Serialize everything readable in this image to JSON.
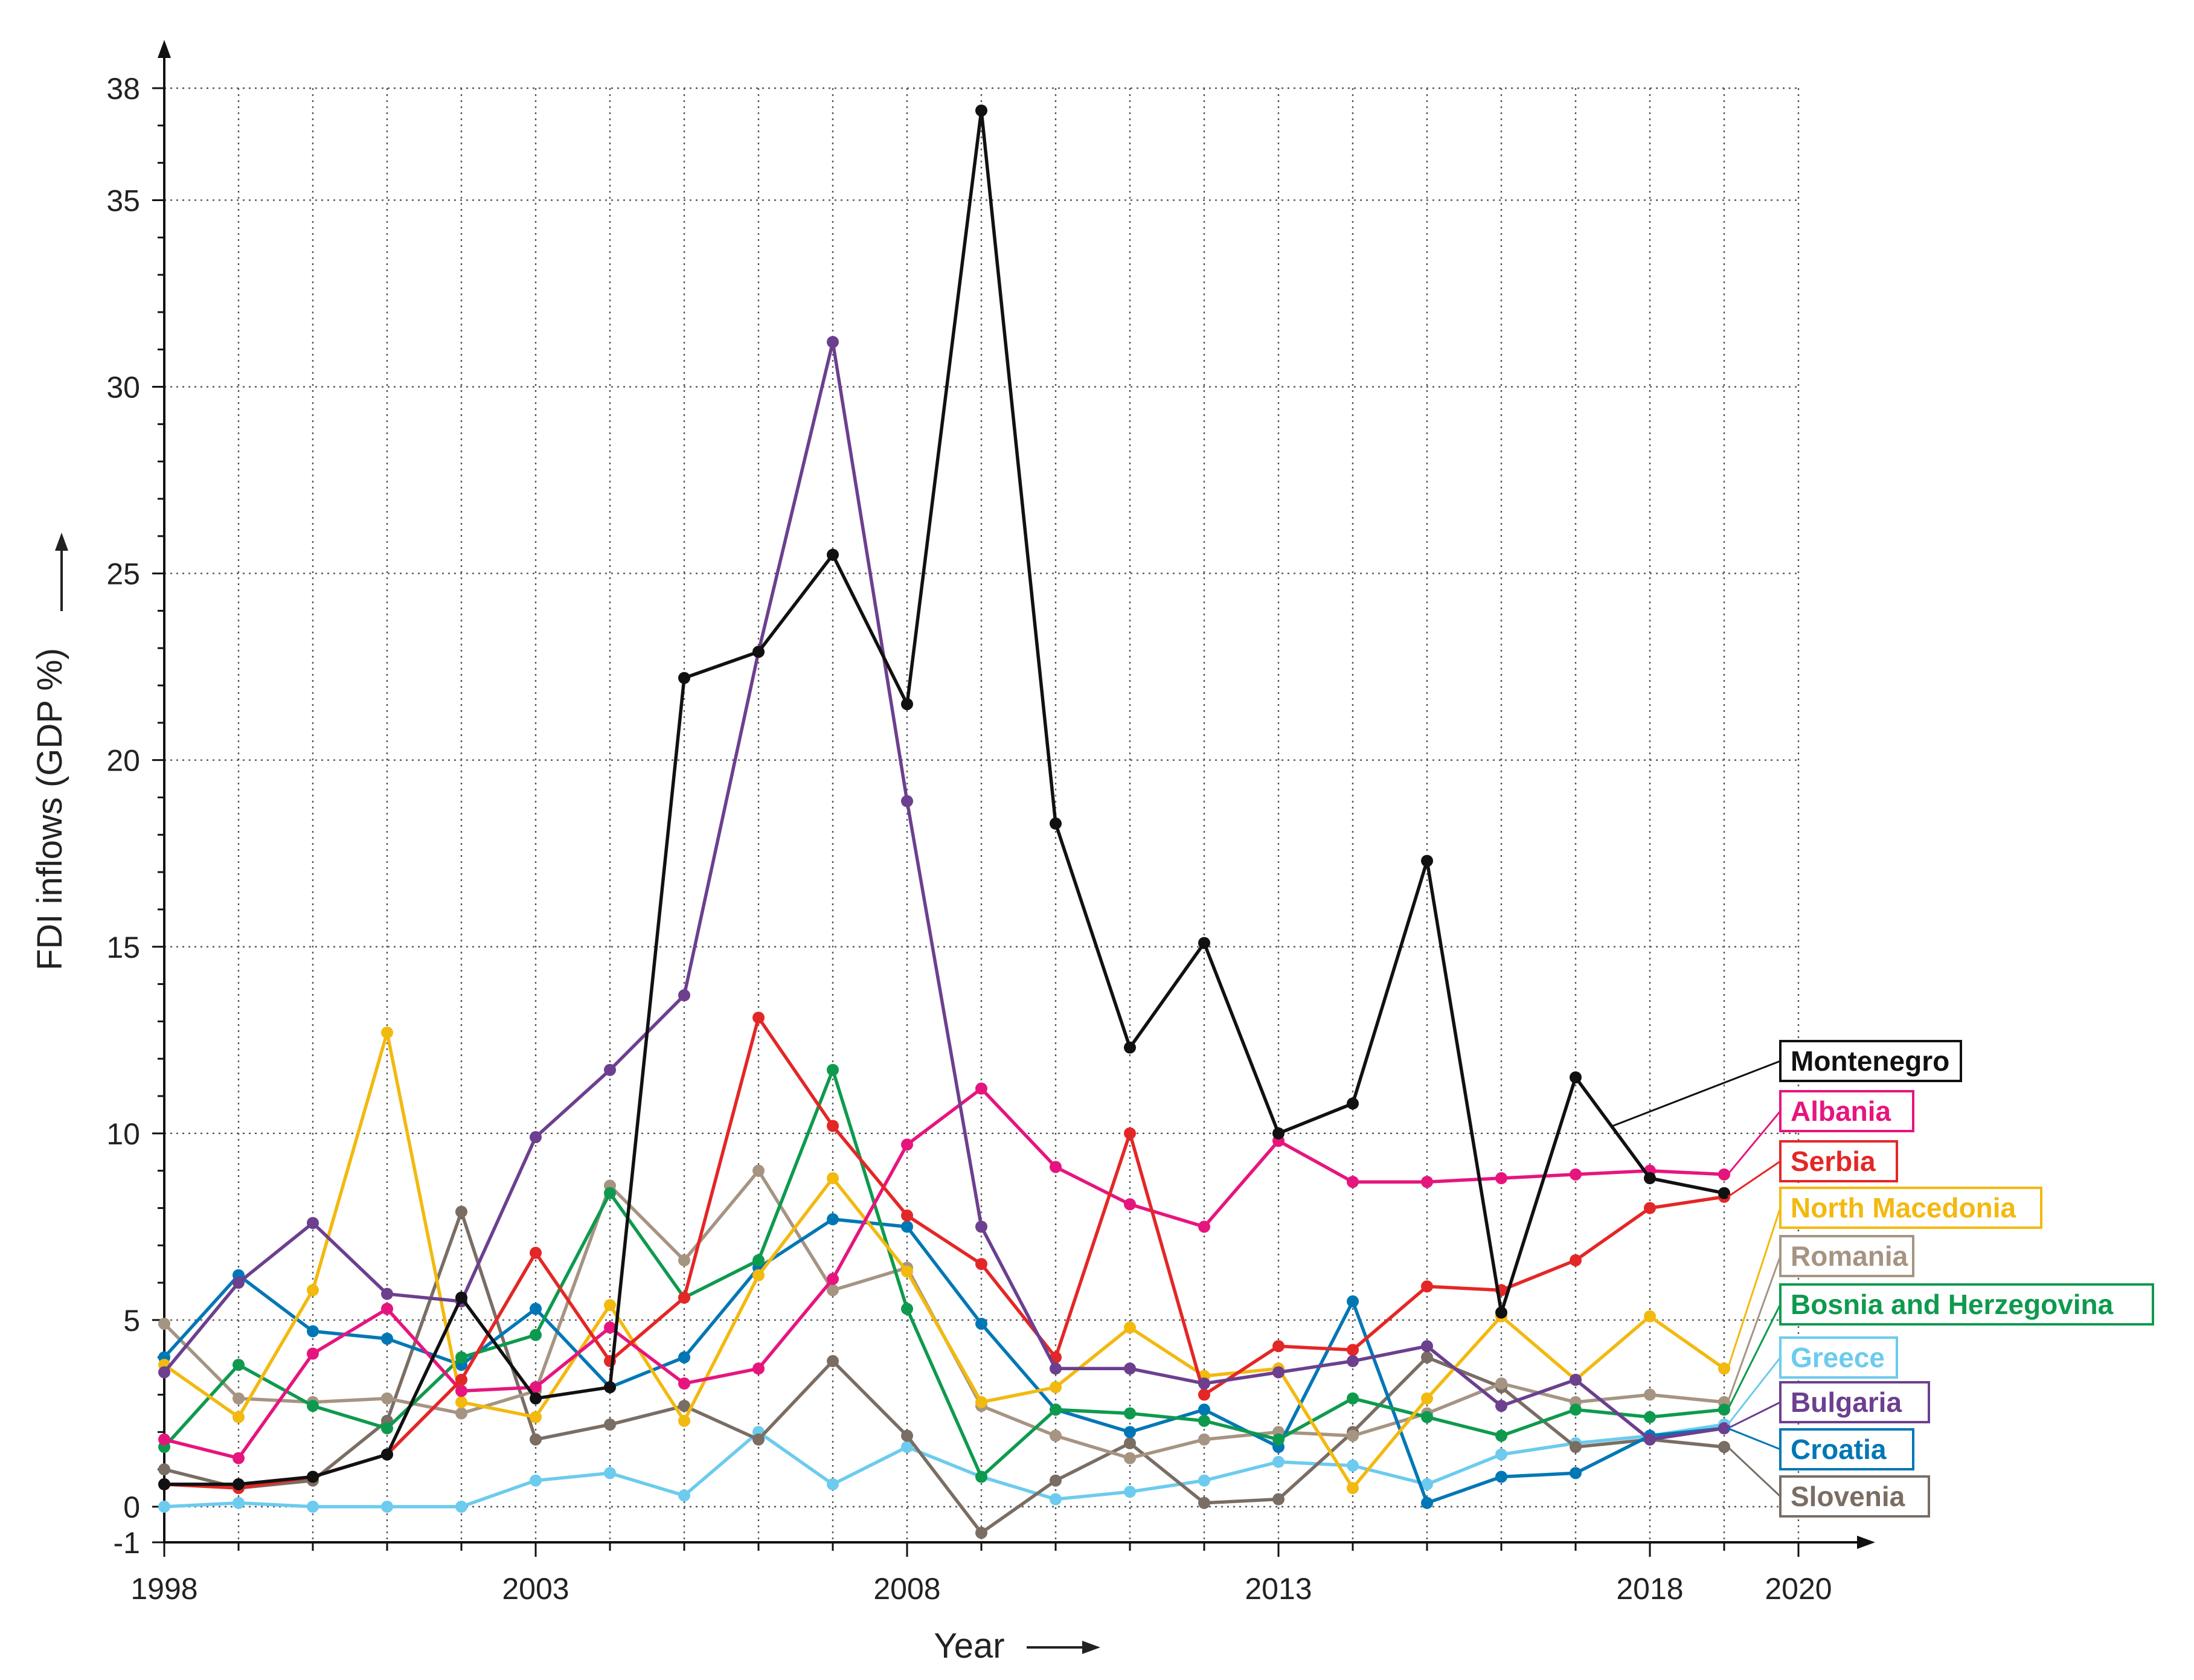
{
  "chart_data": {
    "type": "line",
    "title": "",
    "xlabel": "Year",
    "ylabel": "FDI inflows (GDP %)",
    "xlim": [
      1998,
      2020
    ],
    "ylim": [
      -1,
      38
    ],
    "x_ticks": [
      "1998",
      "2003",
      "2008",
      "2013",
      "2018",
      "2020"
    ],
    "y_ticks": [
      "-1",
      "0",
      "5",
      "10",
      "15",
      "20",
      "25",
      "30",
      "35",
      "38"
    ],
    "x": [
      1998,
      1999,
      2000,
      2001,
      2002,
      2003,
      2004,
      2005,
      2006,
      2007,
      2008,
      2009,
      2010,
      2011,
      2012,
      2013,
      2014,
      2015,
      2016,
      2017,
      2018,
      2019
    ],
    "grid": true,
    "legend_placement": "right",
    "series": [
      {
        "name": "Montenegro",
        "color": "#111111",
        "values": [
          0.6,
          0.6,
          0.8,
          1.4,
          5.6,
          2.9,
          3.2,
          22.2,
          22.9,
          25.5,
          21.5,
          37.4,
          18.3,
          12.3,
          15.1,
          10.0,
          10.8,
          17.3,
          5.2,
          11.5,
          8.8,
          8.4
        ]
      },
      {
        "name": "Albania",
        "color": "#e6157e",
        "values": [
          1.8,
          1.3,
          4.1,
          5.3,
          3.1,
          3.2,
          4.8,
          3.3,
          3.7,
          6.1,
          9.7,
          11.2,
          9.1,
          8.1,
          7.5,
          9.8,
          8.7,
          8.7,
          8.8,
          8.9,
          9.0,
          8.9
        ]
      },
      {
        "name": "Serbia",
        "color": "#e32726",
        "values": [
          0.6,
          0.5,
          0.8,
          1.4,
          3.4,
          6.8,
          3.9,
          5.6,
          13.1,
          10.2,
          7.8,
          6.5,
          4.0,
          10.0,
          3.0,
          4.3,
          4.2,
          5.9,
          5.8,
          6.6,
          8.0,
          8.3
        ]
      },
      {
        "name": "North Macedonia",
        "color": "#f2b90f",
        "values": [
          3.8,
          2.4,
          5.8,
          12.7,
          2.8,
          2.4,
          5.4,
          2.3,
          6.2,
          8.8,
          6.3,
          2.8,
          3.2,
          4.8,
          3.5,
          3.7,
          0.5,
          2.9,
          5.1,
          3.4,
          5.1,
          3.7
        ]
      },
      {
        "name": "Romania",
        "color": "#a69482",
        "values": [
          4.9,
          2.9,
          2.8,
          2.9,
          2.5,
          3.1,
          8.6,
          6.6,
          9.0,
          5.8,
          6.4,
          2.7,
          1.9,
          1.3,
          1.8,
          2.0,
          1.9,
          2.5,
          3.3,
          2.8,
          3.0,
          2.8
        ]
      },
      {
        "name": "Bosnia and Herzegovina",
        "color": "#0e9a4e",
        "values": [
          1.6,
          3.8,
          2.7,
          2.1,
          4.0,
          4.6,
          8.4,
          5.6,
          6.6,
          11.7,
          5.3,
          0.8,
          2.6,
          2.5,
          2.3,
          1.8,
          2.9,
          2.4,
          1.9,
          2.6,
          2.4,
          2.6
        ]
      },
      {
        "name": "Greece",
        "color": "#6ccbee",
        "values": [
          0.0,
          0.1,
          0.0,
          0.0,
          0.0,
          0.7,
          0.9,
          0.3,
          2.0,
          0.6,
          1.6,
          0.8,
          0.2,
          0.4,
          0.7,
          1.2,
          1.1,
          0.6,
          1.4,
          1.7,
          1.9,
          2.2
        ]
      },
      {
        "name": "Bulgaria",
        "color": "#6c3f8f",
        "values": [
          3.6,
          6.0,
          7.6,
          5.7,
          5.5,
          9.9,
          11.7,
          13.7,
          22.9,
          31.2,
          18.9,
          7.5,
          3.7,
          3.7,
          3.3,
          3.6,
          3.9,
          4.3,
          2.7,
          3.4,
          1.8,
          2.1
        ]
      },
      {
        "name": "Croatia",
        "color": "#0077b5",
        "values": [
          4.0,
          6.2,
          4.7,
          4.5,
          3.8,
          5.3,
          3.2,
          4.0,
          6.4,
          7.7,
          7.5,
          4.9,
          2.6,
          2.0,
          2.6,
          1.6,
          5.5,
          0.1,
          0.8,
          0.9,
          1.9,
          2.1
        ]
      },
      {
        "name": "Slovenia",
        "color": "#7a6d63",
        "values": [
          1.0,
          0.5,
          0.7,
          2.3,
          7.9,
          1.8,
          2.2,
          2.7,
          1.8,
          3.9,
          1.9,
          -0.7,
          0.7,
          1.7,
          0.1,
          0.2,
          2.0,
          4.0,
          3.2,
          1.6,
          1.8,
          1.6
        ]
      }
    ]
  }
}
